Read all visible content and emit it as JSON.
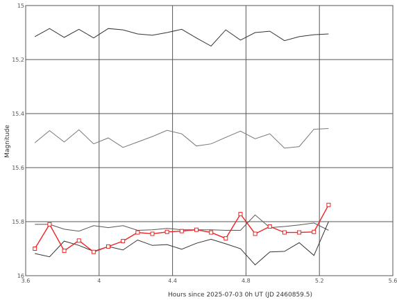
{
  "chart_data": {
    "type": "line",
    "title": "",
    "xlabel": "Hours since 2025-07-03 0h UT (JD 2460859.5)",
    "ylabel": "Magnitude",
    "xlim": [
      3.6,
      5.6
    ],
    "ylim": [
      15,
      16
    ],
    "y_inverted": true,
    "grid": true,
    "xticks": [
      "3.6",
      "4",
      "4.4",
      "4.8",
      "5.2",
      "5.6"
    ],
    "yticks": [
      "15",
      "15.2",
      "15.4",
      "15.6",
      "15.8",
      "16"
    ],
    "series": [
      {
        "color": "#333333",
        "marker": "none",
        "x": [
          3.65,
          3.73,
          3.81,
          3.89,
          3.97,
          4.05,
          4.13,
          4.21,
          4.29,
          4.37,
          4.45,
          4.53,
          4.61,
          4.69,
          4.77,
          4.85,
          4.93,
          5.01,
          5.09,
          5.17,
          5.25
        ],
        "y": [
          15.115,
          15.085,
          15.118,
          15.088,
          15.12,
          15.085,
          15.09,
          15.105,
          15.11,
          15.1,
          15.088,
          15.12,
          15.15,
          15.09,
          15.128,
          15.1,
          15.095,
          15.13,
          15.115,
          15.108,
          15.105
        ]
      },
      {
        "color": "#777777",
        "marker": "none",
        "x": [
          3.65,
          3.73,
          3.81,
          3.89,
          3.97,
          4.05,
          4.13,
          4.21,
          4.29,
          4.37,
          4.45,
          4.53,
          4.61,
          4.69,
          4.77,
          4.85,
          4.93,
          5.01,
          5.09,
          5.17,
          5.25
        ],
        "y": [
          15.508,
          15.463,
          15.505,
          15.46,
          15.512,
          15.49,
          15.525,
          15.505,
          15.485,
          15.462,
          15.475,
          15.52,
          15.512,
          15.488,
          15.465,
          15.493,
          15.475,
          15.528,
          15.522,
          15.458,
          15.455
        ]
      },
      {
        "color": "#555555",
        "marker": "none",
        "x": [
          3.65,
          3.73,
          3.81,
          3.89,
          3.97,
          4.05,
          4.13,
          4.21,
          4.29,
          4.37,
          4.45,
          4.53,
          4.61,
          4.69,
          4.77,
          4.85,
          4.93,
          5.01,
          5.09,
          5.17,
          5.25
        ],
        "y": [
          15.81,
          15.81,
          15.828,
          15.835,
          15.815,
          15.822,
          15.815,
          15.832,
          15.83,
          15.825,
          15.83,
          15.83,
          15.83,
          15.832,
          15.832,
          15.775,
          15.822,
          15.818,
          15.812,
          15.805,
          15.832
        ]
      },
      {
        "color": "#333333",
        "marker": "none",
        "x": [
          3.65,
          3.73,
          3.81,
          3.89,
          3.97,
          4.05,
          4.13,
          4.21,
          4.29,
          4.37,
          4.45,
          4.53,
          4.61,
          4.69,
          4.77,
          4.85,
          4.93,
          5.01,
          5.09,
          5.17,
          5.25
        ],
        "y": [
          15.918,
          15.93,
          15.872,
          15.888,
          15.91,
          15.892,
          15.905,
          15.868,
          15.888,
          15.885,
          15.902,
          15.88,
          15.865,
          15.882,
          15.9,
          15.96,
          15.912,
          15.91,
          15.878,
          15.925,
          15.8
        ]
      },
      {
        "color": "#ee2222",
        "marker": "square",
        "x": [
          3.65,
          3.73,
          3.81,
          3.89,
          3.97,
          4.05,
          4.13,
          4.21,
          4.29,
          4.37,
          4.45,
          4.53,
          4.61,
          4.69,
          4.77,
          4.85,
          4.93,
          5.01,
          5.09,
          5.17,
          5.25
        ],
        "y": [
          15.9,
          15.81,
          15.908,
          15.87,
          15.912,
          15.892,
          15.872,
          15.84,
          15.845,
          15.838,
          15.835,
          15.83,
          15.84,
          15.862,
          15.772,
          15.845,
          15.818,
          15.84,
          15.84,
          15.838,
          15.738
        ]
      }
    ]
  }
}
